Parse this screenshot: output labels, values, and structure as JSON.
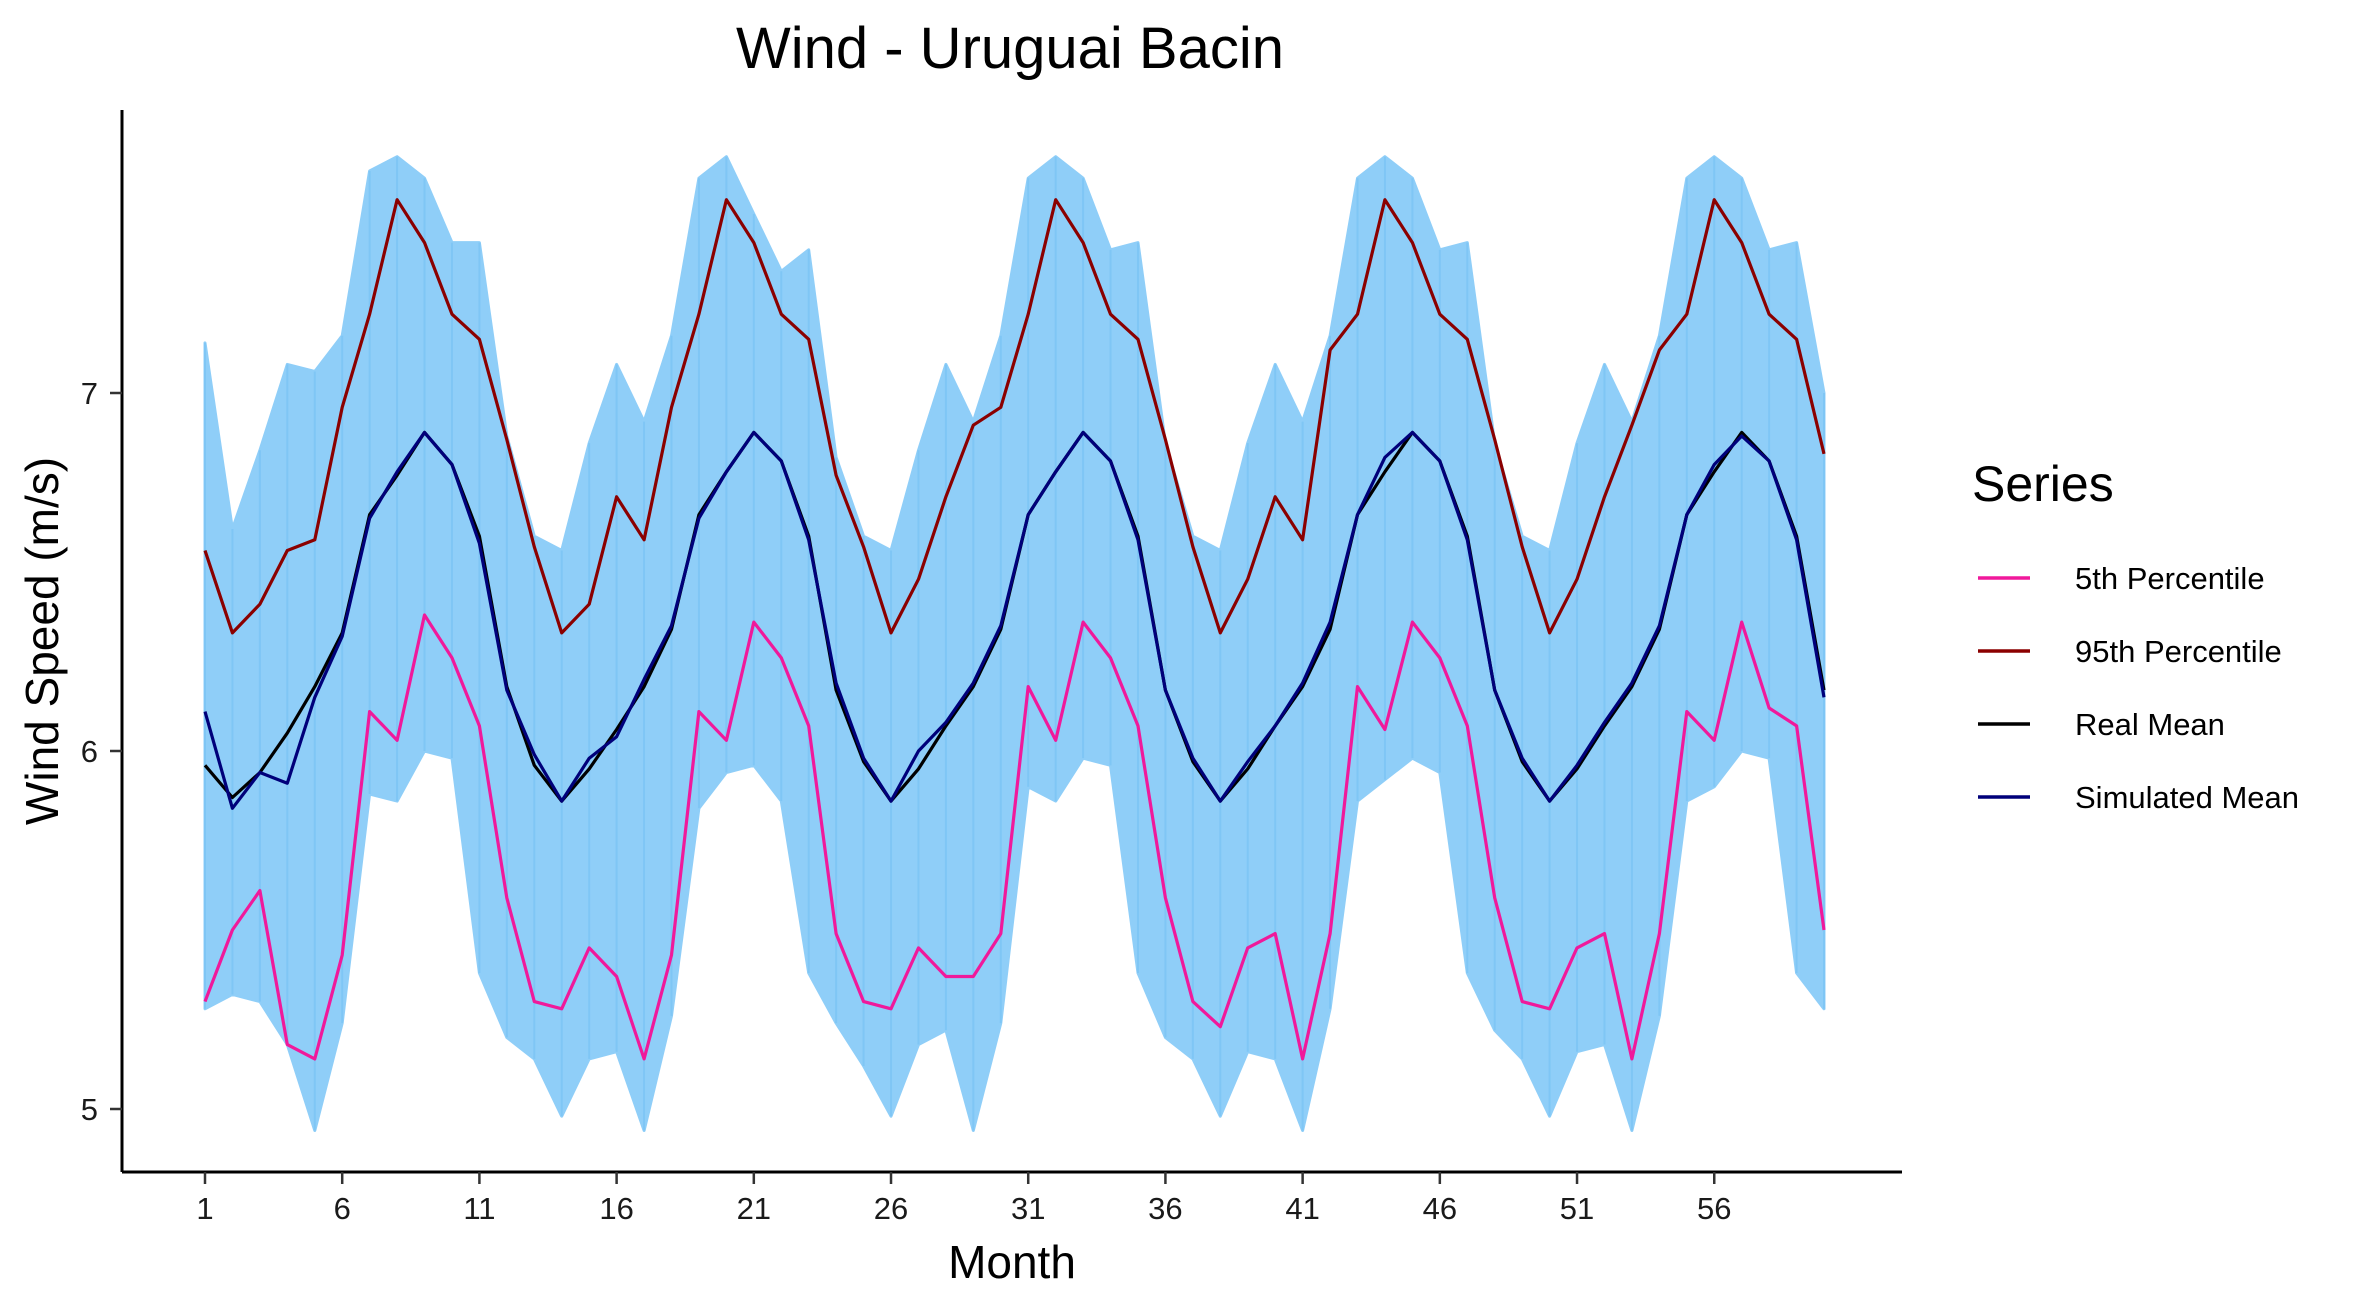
{
  "chart_data": {
    "type": "line",
    "title": "Wind - Uruguai Bacin",
    "xlabel": "Month",
    "ylabel": "Wind Speed (m/s)",
    "xlim": [
      1,
      60
    ],
    "ylim": [
      4.87,
      7.8
    ],
    "x_ticks": [
      1,
      6,
      11,
      16,
      21,
      26,
      31,
      36,
      41,
      46,
      51,
      56
    ],
    "x_tick_labels": [
      "1",
      "6",
      "11",
      "16",
      "21",
      "26",
      "31",
      "36",
      "41",
      "46",
      "51",
      "56"
    ],
    "y_ticks": [
      5,
      6,
      7
    ],
    "y_tick_labels": [
      "5",
      "6",
      "7"
    ],
    "grid": false,
    "legend": {
      "title": "Series",
      "position": "right"
    },
    "simulation_band": {
      "color": "#8fcef8",
      "lower": [
        5.28,
        5.32,
        5.3,
        5.18,
        4.94,
        5.24,
        5.88,
        5.86,
        6.0,
        5.98,
        5.38,
        5.2,
        5.14,
        4.98,
        5.14,
        5.16,
        4.94,
        5.26,
        5.84,
        5.94,
        5.96,
        5.86,
        5.38,
        5.24,
        5.12,
        4.98,
        5.18,
        5.22,
        4.94,
        5.24,
        5.9,
        5.86,
        5.98,
        5.96,
        5.38,
        5.2,
        5.14,
        4.98,
        5.16,
        5.14,
        4.94,
        5.28,
        5.86,
        5.92,
        5.98,
        5.94,
        5.38,
        5.22,
        5.14,
        4.98,
        5.16,
        5.18,
        4.94,
        5.26,
        5.86,
        5.9,
        6.0,
        5.98,
        5.38,
        5.28
      ],
      "upper": [
        7.14,
        6.62,
        6.84,
        7.08,
        7.06,
        7.16,
        7.62,
        7.66,
        7.6,
        7.42,
        7.42,
        6.88,
        6.6,
        6.56,
        6.86,
        7.08,
        6.92,
        7.16,
        7.6,
        7.66,
        7.5,
        7.34,
        7.4,
        6.82,
        6.6,
        6.56,
        6.84,
        7.08,
        6.92,
        7.16,
        7.6,
        7.66,
        7.6,
        7.4,
        7.42,
        6.86,
        6.6,
        6.56,
        6.86,
        7.08,
        6.92,
        7.16,
        7.6,
        7.66,
        7.6,
        7.4,
        7.42,
        6.86,
        6.6,
        6.56,
        6.86,
        7.08,
        6.92,
        7.16,
        7.6,
        7.66,
        7.6,
        7.4,
        7.42,
        7.0
      ]
    },
    "series": [
      {
        "name": "5th Percentile",
        "color": "#f0199b",
        "values": [
          5.3,
          5.5,
          5.61,
          5.18,
          5.14,
          5.43,
          6.11,
          6.03,
          6.38,
          6.26,
          6.07,
          5.59,
          5.3,
          5.28,
          5.45,
          5.37,
          5.14,
          5.43,
          6.11,
          6.03,
          6.36,
          6.26,
          6.07,
          5.49,
          5.3,
          5.28,
          5.45,
          5.37,
          5.37,
          5.49,
          6.18,
          6.03,
          6.36,
          6.26,
          6.07,
          5.59,
          5.3,
          5.23,
          5.45,
          5.49,
          5.14,
          5.49,
          6.18,
          6.06,
          6.36,
          6.26,
          6.07,
          5.59,
          5.3,
          5.28,
          5.45,
          5.49,
          5.14,
          5.49,
          6.11,
          6.03,
          6.36,
          6.12,
          6.07,
          5.5
        ]
      },
      {
        "name": "95th Percentile",
        "color": "#8b0000",
        "values": [
          6.56,
          6.33,
          6.41,
          6.56,
          6.59,
          6.96,
          7.22,
          7.54,
          7.42,
          7.22,
          7.15,
          6.87,
          6.57,
          6.33,
          6.41,
          6.71,
          6.59,
          6.96,
          7.22,
          7.54,
          7.42,
          7.22,
          7.15,
          6.77,
          6.57,
          6.33,
          6.48,
          6.71,
          6.91,
          6.96,
          7.22,
          7.54,
          7.42,
          7.22,
          7.15,
          6.87,
          6.57,
          6.33,
          6.48,
          6.71,
          6.59,
          7.12,
          7.22,
          7.54,
          7.42,
          7.22,
          7.15,
          6.87,
          6.57,
          6.33,
          6.48,
          6.71,
          6.91,
          7.12,
          7.22,
          7.54,
          7.42,
          7.22,
          7.15,
          6.83
        ]
      },
      {
        "name": "Real Mean",
        "color": "#000000",
        "values": [
          5.96,
          5.87,
          5.94,
          6.05,
          6.18,
          6.33,
          6.66,
          6.77,
          6.89,
          6.8,
          6.6,
          6.18,
          5.96,
          5.86,
          5.95,
          6.06,
          6.18,
          6.34,
          6.66,
          6.78,
          6.89,
          6.81,
          6.6,
          6.17,
          5.97,
          5.86,
          5.95,
          6.07,
          6.18,
          6.34,
          6.66,
          6.78,
          6.89,
          6.81,
          6.6,
          6.17,
          5.97,
          5.86,
          5.95,
          6.07,
          6.18,
          6.34,
          6.66,
          6.78,
          6.89,
          6.81,
          6.6,
          6.17,
          5.97,
          5.86,
          5.95,
          6.07,
          6.18,
          6.34,
          6.66,
          6.78,
          6.89,
          6.81,
          6.6,
          6.17
        ]
      },
      {
        "name": "Simulated Mean",
        "color": "#00007a",
        "values": [
          6.11,
          5.84,
          5.94,
          5.91,
          6.15,
          6.32,
          6.65,
          6.78,
          6.89,
          6.8,
          6.58,
          6.17,
          5.99,
          5.86,
          5.98,
          6.04,
          6.2,
          6.35,
          6.65,
          6.78,
          6.89,
          6.81,
          6.59,
          6.19,
          5.98,
          5.86,
          6.0,
          6.08,
          6.19,
          6.35,
          6.66,
          6.78,
          6.89,
          6.81,
          6.59,
          6.17,
          5.98,
          5.86,
          5.97,
          6.07,
          6.19,
          6.36,
          6.66,
          6.82,
          6.89,
          6.81,
          6.59,
          6.17,
          5.98,
          5.86,
          5.96,
          6.08,
          6.19,
          6.35,
          6.66,
          6.8,
          6.88,
          6.81,
          6.59,
          6.15
        ]
      }
    ]
  }
}
